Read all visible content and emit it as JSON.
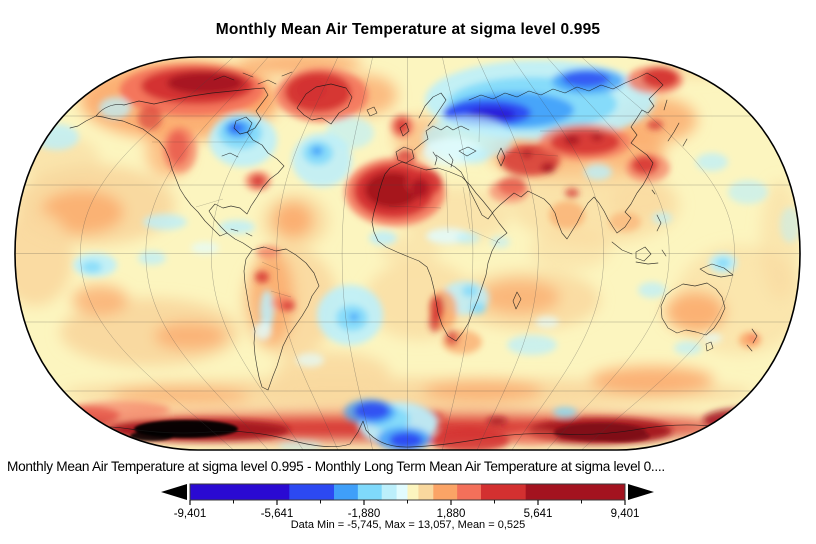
{
  "title": "Monthly Mean Air Temperature at sigma level 0.995",
  "subtitle": "Monthly Mean Air Temperature at sigma level 0.995 - Monthly Long Term Mean Air Temperature at sigma level 0....",
  "stats_line": "Data Min = -5,745, Max = 13,057, Mean = 0,525",
  "chart_data": {
    "type": "heatmap",
    "projection": "robinson-world-map",
    "title": "Monthly Mean Air Temperature at sigma level 0.995",
    "subtitle_expression": "Monthly Mean Air Temperature at sigma level 0.995 - Monthly Long Term Mean Air Temperature at sigma level 0....",
    "stats": {
      "data_min": "-5,745",
      "data_max": "13,057",
      "mean": "0,525"
    },
    "colorbar": {
      "orientation": "horizontal",
      "has_end_arrows": true,
      "tick_labels": [
        "-9,401",
        "-5,641",
        "-1,880",
        "1,880",
        "5,641",
        "9,401"
      ],
      "tick_values": [
        -9.401,
        -5.641,
        -1.88,
        1.88,
        5.641,
        9.401
      ],
      "range": [
        -9.401,
        9.401
      ],
      "over_range_color_on_map": "#000000",
      "segments": [
        {
          "color": "navy",
          "weight": 100
        },
        {
          "color": "royal",
          "weight": 45
        },
        {
          "color": "blue",
          "weight": 24
        },
        {
          "color": "sky",
          "weight": 24
        },
        {
          "color": "pale",
          "weight": 15
        },
        {
          "color": "faint",
          "weight": 11
        },
        {
          "color": "cream",
          "weight": 11
        },
        {
          "color": "peach",
          "weight": 15
        },
        {
          "color": "orange",
          "weight": 24
        },
        {
          "color": "salmon",
          "weight": 24
        },
        {
          "color": "red",
          "weight": 45
        },
        {
          "color": "darkred",
          "weight": 100
        }
      ]
    },
    "palette": {
      "navy": "#2A0AD2",
      "royal": "#2C49F2",
      "blue": "#3F9FF9",
      "sky": "#7FD9FB",
      "pale": "#BCEFFB",
      "faint": "#E2FCFE",
      "cream": "#FCF5BF",
      "peach": "#F9D89E",
      "orange": "#FBA466",
      "salmon": "#F3705A",
      "red": "#D33030",
      "darkred": "#A3131F",
      "maroon": "#7E0D17",
      "black": "#000000"
    },
    "anomaly_regions": [
      [
        180,
        100,
        100,
        40,
        "orange",
        0.85,
        1
      ],
      [
        95,
        205,
        80,
        40,
        "peach",
        0.95,
        1
      ],
      [
        82,
        212,
        42,
        22,
        "orange",
        0.75,
        1
      ],
      [
        35,
        258,
        38,
        48,
        "peach",
        0.9,
        1
      ],
      [
        150,
        332,
        90,
        34,
        "peach",
        0.95,
        1
      ],
      [
        100,
        300,
        28,
        15,
        "orange",
        0.7,
        1
      ],
      [
        190,
        336,
        36,
        14,
        "orange",
        0.7,
        1
      ],
      [
        290,
        302,
        48,
        55,
        "peach",
        0.9,
        1
      ],
      [
        272,
        298,
        22,
        48,
        "orange",
        0.75,
        1
      ],
      [
        332,
        374,
        58,
        22,
        "peach",
        0.85,
        1
      ],
      [
        295,
        221,
        34,
        28,
        "peach",
        0.8,
        1
      ],
      [
        293,
        220,
        20,
        18,
        "orange",
        0.8,
        1
      ],
      [
        455,
        215,
        55,
        28,
        "peach",
        0.6,
        1
      ],
      [
        420,
        300,
        55,
        40,
        "peach",
        0.7,
        1
      ],
      [
        577,
        152,
        88,
        30,
        "orange",
        0.75,
        1
      ],
      [
        595,
        205,
        85,
        40,
        "peach",
        0.65,
        1
      ],
      [
        528,
        300,
        72,
        30,
        "peach",
        0.85,
        1
      ],
      [
        520,
        297,
        40,
        17,
        "orange",
        0.65,
        1
      ],
      [
        740,
        300,
        65,
        55,
        "peach",
        0.55,
        1
      ],
      [
        695,
        312,
        30,
        20,
        "orange",
        0.8,
        1
      ],
      [
        408,
        393,
        345,
        15,
        "peach",
        0.95,
        1
      ],
      [
        180,
        396,
        70,
        10,
        "orange",
        0.6,
        1
      ],
      [
        483,
        391,
        60,
        11,
        "orange",
        0.7,
        1
      ],
      [
        652,
        380,
        62,
        14,
        "orange",
        0.8,
        1
      ],
      [
        300,
        64,
        62,
        11,
        "orange",
        0.8,
        1
      ],
      [
        700,
        67,
        45,
        10,
        "peach",
        0.85,
        1
      ],
      [
        655,
        120,
        42,
        23,
        "orange",
        0.75,
        1
      ],
      [
        420,
        138,
        26,
        22,
        "orange",
        0.55,
        1
      ],
      [
        168,
        152,
        22,
        26,
        "orange",
        0.6,
        1
      ],
      [
        240,
        100,
        40,
        18,
        "orange",
        0.6,
        1
      ],
      [
        367,
        95,
        30,
        20,
        "orange",
        0.7,
        1
      ],
      [
        780,
        240,
        20,
        60,
        "peach",
        0.5,
        1
      ],
      [
        60,
        160,
        40,
        25,
        "peach",
        0.6,
        1
      ],
      [
        410,
        250,
        30,
        15,
        "peach",
        0.5,
        1
      ],
      [
        570,
        250,
        40,
        20,
        "peach",
        0.5,
        1
      ],
      [
        640,
        200,
        30,
        20,
        "peach",
        0.5,
        1
      ],
      [
        400,
        426,
        330,
        15,
        "salmon",
        0.9,
        1
      ],
      [
        400,
        429,
        335,
        11,
        "red",
        0.9,
        1
      ],
      [
        540,
        100,
        115,
        40,
        "pale",
        0.9,
        2
      ],
      [
        532,
        104,
        85,
        27,
        "sky",
        0.9,
        2
      ],
      [
        512,
        110,
        62,
        18,
        "blue",
        0.9,
        2
      ],
      [
        487,
        113,
        44,
        13,
        "royal",
        0.95,
        2
      ],
      [
        492,
        114,
        24,
        7,
        "navy",
        0.75,
        2
      ],
      [
        588,
        81,
        36,
        13,
        "blue",
        0.8,
        2
      ],
      [
        586,
        79,
        24,
        8,
        "royal",
        0.8,
        2
      ],
      [
        468,
        138,
        45,
        22,
        "pale",
        0.75,
        2
      ],
      [
        452,
        152,
        30,
        14,
        "faint",
        0.8,
        2
      ],
      [
        475,
        156,
        14,
        8,
        "pale",
        0.7,
        2
      ],
      [
        243,
        140,
        34,
        27,
        "pale",
        0.9,
        2
      ],
      [
        240,
        133,
        22,
        16,
        "sky",
        0.9,
        2
      ],
      [
        238,
        129,
        13,
        9,
        "blue",
        0.9,
        2
      ],
      [
        236,
        128,
        6,
        4,
        "royal",
        0.9,
        2
      ],
      [
        322,
        160,
        30,
        27,
        "pale",
        0.85,
        2
      ],
      [
        318,
        153,
        15,
        12,
        "sky",
        0.85,
        2
      ],
      [
        317,
        151,
        6,
        5,
        "blue",
        0.85,
        2
      ],
      [
        350,
        133,
        24,
        16,
        "pale",
        0.65,
        2
      ],
      [
        57,
        137,
        22,
        13,
        "pale",
        0.8,
        2
      ],
      [
        115,
        108,
        16,
        11,
        "pale",
        0.75,
        2
      ],
      [
        95,
        265,
        22,
        12,
        "pale",
        0.9,
        2
      ],
      [
        92,
        267,
        10,
        6,
        "sky",
        0.8,
        2
      ],
      [
        152,
        258,
        14,
        7,
        "pale",
        0.75,
        2
      ],
      [
        165,
        222,
        22,
        8,
        "pale",
        0.8,
        2
      ],
      [
        237,
        227,
        18,
        7,
        "pale",
        0.8,
        2
      ],
      [
        205,
        248,
        14,
        6,
        "faint",
        0.7,
        2
      ],
      [
        267,
        310,
        7,
        20,
        "pale",
        0.85,
        2
      ],
      [
        263,
        331,
        9,
        9,
        "faint",
        0.8,
        2
      ],
      [
        350,
        315,
        33,
        30,
        "pale",
        0.9,
        2
      ],
      [
        352,
        318,
        16,
        13,
        "sky",
        0.85,
        2
      ],
      [
        354,
        317,
        5,
        4,
        "blue",
        0.8,
        2
      ],
      [
        310,
        360,
        14,
        7,
        "faint",
        0.7,
        2
      ],
      [
        383,
        238,
        14,
        7,
        "pale",
        0.85,
        2
      ],
      [
        448,
        236,
        22,
        8,
        "faint",
        0.85,
        2
      ],
      [
        468,
        238,
        12,
        6,
        "pale",
        0.7,
        2
      ],
      [
        465,
        298,
        24,
        17,
        "pale",
        0.85,
        2
      ],
      [
        470,
        291,
        8,
        6,
        "sky",
        0.8,
        2
      ],
      [
        478,
        308,
        8,
        6,
        "sky",
        0.8,
        2
      ],
      [
        500,
        242,
        10,
        6,
        "pale",
        0.6,
        2
      ],
      [
        532,
        345,
        25,
        10,
        "pale",
        0.75,
        2
      ],
      [
        547,
        322,
        12,
        6,
        "faint",
        0.7,
        2
      ],
      [
        598,
        172,
        14,
        8,
        "pale",
        0.8,
        2
      ],
      [
        712,
        162,
        16,
        9,
        "pale",
        0.75,
        2
      ],
      [
        748,
        192,
        20,
        12,
        "pale",
        0.65,
        2
      ],
      [
        662,
        218,
        10,
        6,
        "pale",
        0.7,
        2
      ],
      [
        723,
        263,
        14,
        10,
        "pale",
        0.9,
        2
      ],
      [
        723,
        263,
        7,
        5,
        "sky",
        0.85,
        2
      ],
      [
        652,
        290,
        14,
        8,
        "pale",
        0.75,
        2
      ],
      [
        688,
        348,
        14,
        7,
        "pale",
        0.7,
        2
      ],
      [
        712,
        338,
        10,
        5,
        "faint",
        0.7,
        2
      ],
      [
        790,
        225,
        10,
        18,
        "pale",
        0.5,
        2
      ],
      [
        192,
        90,
        72,
        26,
        "salmon",
        0.9,
        2
      ],
      [
        197,
        86,
        56,
        18,
        "red",
        0.95,
        2
      ],
      [
        205,
        83,
        38,
        11,
        "darkred",
        0.9,
        2
      ],
      [
        150,
        118,
        12,
        12,
        "red",
        0.6,
        2
      ],
      [
        178,
        148,
        10,
        16,
        "red",
        0.8,
        2
      ],
      [
        180,
        150,
        17,
        23,
        "salmon",
        0.65,
        2
      ],
      [
        322,
        95,
        46,
        27,
        "salmon",
        0.85,
        2
      ],
      [
        318,
        92,
        33,
        20,
        "red",
        0.9,
        2
      ],
      [
        312,
        90,
        15,
        11,
        "red",
        1,
        2
      ],
      [
        258,
        181,
        13,
        10,
        "salmon",
        0.7,
        2
      ],
      [
        258,
        181,
        7,
        6,
        "red",
        0.8,
        2
      ],
      [
        402,
        126,
        12,
        12,
        "salmon",
        0.65,
        2
      ],
      [
        402,
        126,
        7,
        8,
        "red",
        0.8,
        2
      ],
      [
        405,
        158,
        10,
        8,
        "red",
        0.8,
        2
      ],
      [
        395,
        192,
        50,
        34,
        "salmon",
        0.85,
        2
      ],
      [
        394,
        191,
        40,
        27,
        "red",
        0.95,
        2
      ],
      [
        392,
        190,
        27,
        18,
        "darkred",
        0.95,
        2
      ],
      [
        424,
        183,
        18,
        14,
        "red",
        0.85,
        2
      ],
      [
        420,
        188,
        9,
        10,
        "darkred",
        0.8,
        2
      ],
      [
        530,
        160,
        30,
        16,
        "red",
        0.8,
        2
      ],
      [
        548,
        168,
        7,
        5,
        "darkred",
        0.85,
        2
      ],
      [
        527,
        154,
        5,
        4,
        "darkred",
        0.7,
        2
      ],
      [
        512,
        186,
        14,
        9,
        "red",
        0.75,
        2
      ],
      [
        509,
        191,
        20,
        12,
        "salmon",
        0.6,
        2
      ],
      [
        585,
        142,
        46,
        18,
        "salmon",
        0.7,
        2
      ],
      [
        585,
        142,
        35,
        13,
        "red",
        0.85,
        2
      ],
      [
        572,
        140,
        8,
        5,
        "darkred",
        0.8,
        2
      ],
      [
        597,
        137,
        6,
        4,
        "darkred",
        0.7,
        2
      ],
      [
        648,
        168,
        22,
        14,
        "salmon",
        0.65,
        2
      ],
      [
        645,
        165,
        13,
        9,
        "red",
        0.8,
        2
      ],
      [
        655,
        125,
        8,
        5,
        "red",
        0.75,
        2
      ],
      [
        655,
        80,
        28,
        14,
        "salmon",
        0.8,
        2
      ],
      [
        660,
        78,
        18,
        10,
        "red",
        0.9,
        2
      ],
      [
        567,
        215,
        18,
        14,
        "orange",
        0.65,
        2
      ],
      [
        572,
        193,
        7,
        5,
        "red",
        0.7,
        2
      ],
      [
        625,
        222,
        16,
        10,
        "orange",
        0.55,
        2
      ],
      [
        262,
        277,
        7,
        6,
        "red",
        0.8,
        2
      ],
      [
        268,
        252,
        12,
        6,
        "salmon",
        0.65,
        2
      ],
      [
        283,
        303,
        12,
        8,
        "salmon",
        0.6,
        2
      ],
      [
        288,
        306,
        7,
        5,
        "red",
        0.75,
        2
      ],
      [
        443,
        310,
        14,
        20,
        "orange",
        0.8,
        2
      ],
      [
        437,
        308,
        7,
        13,
        "red",
        0.85,
        2
      ],
      [
        435,
        322,
        6,
        10,
        "red",
        0.7,
        2
      ],
      [
        462,
        342,
        20,
        12,
        "orange",
        0.7,
        2
      ],
      [
        452,
        338,
        7,
        8,
        "red",
        0.6,
        2
      ],
      [
        750,
        340,
        11,
        8,
        "orange",
        0.8,
        2
      ],
      [
        753,
        338,
        5,
        4,
        "salmon",
        0.7,
        2
      ],
      [
        200,
        430,
        90,
        11,
        "darkred",
        0.95,
        2
      ],
      [
        600,
        431,
        72,
        13,
        "darkred",
        0.95,
        2
      ],
      [
        745,
        420,
        42,
        12,
        "darkred",
        0.85,
        2
      ],
      [
        80,
        416,
        40,
        10,
        "red",
        0.8,
        2
      ],
      [
        120,
        410,
        50,
        9,
        "salmon",
        0.6,
        2
      ],
      [
        415,
        417,
        28,
        8,
        "red",
        0.85,
        2
      ],
      [
        497,
        421,
        10,
        4,
        "darkred",
        0.8,
        2
      ],
      [
        470,
        440,
        40,
        12,
        "red",
        0.85,
        2
      ],
      [
        533,
        437,
        25,
        8,
        "salmon",
        0.5,
        2
      ],
      [
        398,
        424,
        40,
        22,
        "pale",
        0.95,
        2
      ],
      [
        390,
        419,
        20,
        12,
        "sky",
        0.9,
        2
      ],
      [
        370,
        412,
        26,
        13,
        "blue",
        0.75,
        2
      ],
      [
        372,
        411,
        18,
        9,
        "royal",
        0.9,
        2
      ],
      [
        404,
        439,
        27,
        12,
        "blue",
        0.85,
        2
      ],
      [
        406,
        440,
        17,
        8,
        "royal",
        0.95,
        2
      ],
      [
        565,
        412,
        12,
        5,
        "sky",
        0.8,
        2
      ],
      [
        300,
        446,
        22,
        6,
        "pale",
        0.5,
        2
      ],
      [
        186,
        429,
        52,
        9,
        "black",
        0.95,
        3
      ],
      [
        152,
        436,
        22,
        5,
        "black",
        0.85,
        3
      ],
      [
        600,
        432,
        46,
        9,
        "maroon",
        0.9,
        3
      ],
      [
        622,
        436,
        28,
        6,
        "maroon",
        0.8,
        3
      ]
    ]
  }
}
